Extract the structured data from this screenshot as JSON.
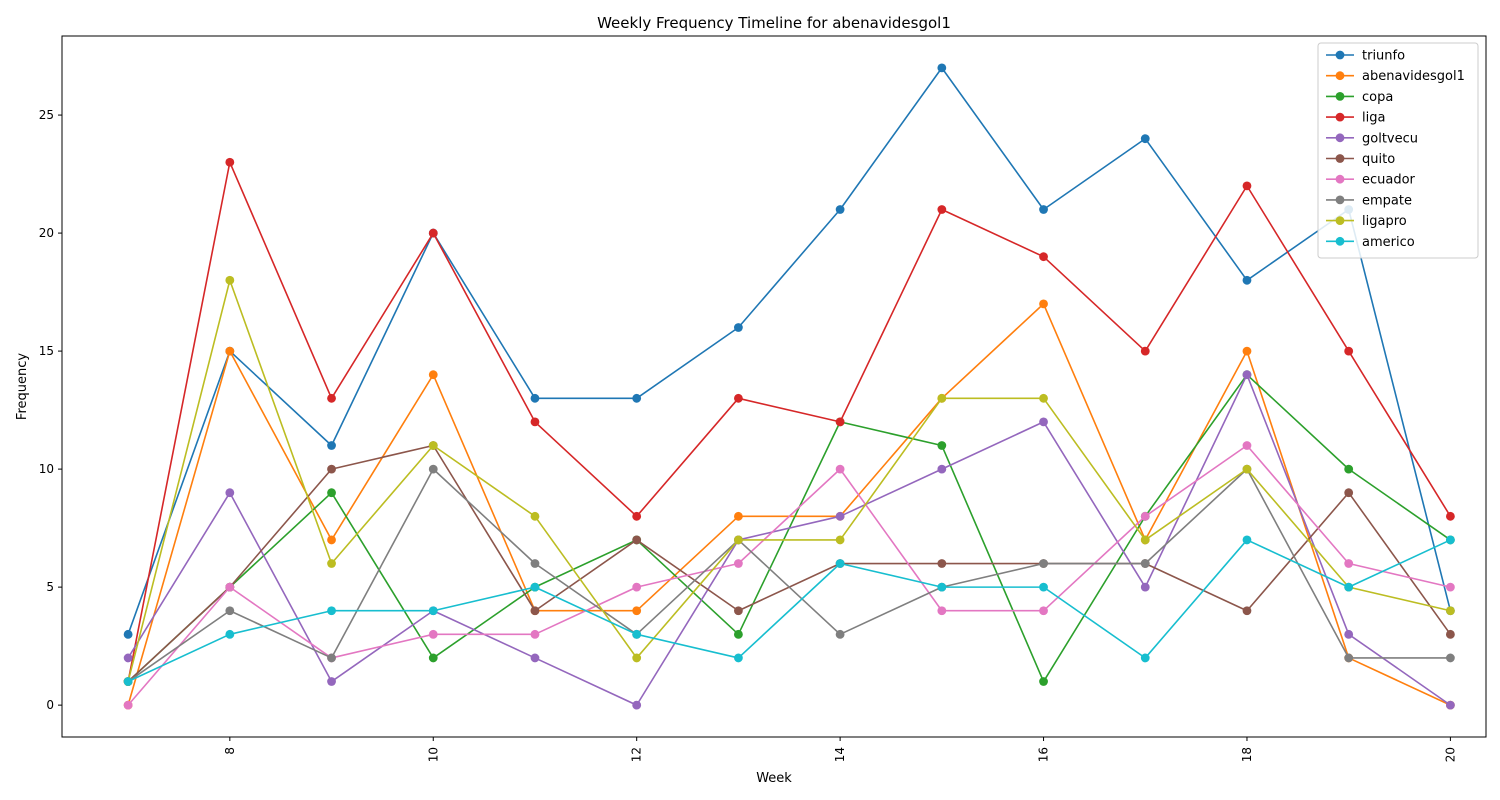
{
  "chart_data": {
    "type": "line",
    "title": "Weekly Frequency Timeline for abenavidesgol1",
    "xlabel": "Week",
    "ylabel": "Frequency",
    "x": [
      7,
      8,
      9,
      10,
      11,
      12,
      13,
      14,
      15,
      16,
      17,
      18,
      19,
      20
    ],
    "xticks": [
      8,
      10,
      12,
      14,
      16,
      18,
      20
    ],
    "xtick_rotation": 90,
    "xlim": [
      6.35,
      20.35
    ],
    "yticks": [
      0,
      5,
      10,
      15,
      20,
      25
    ],
    "ylim": [
      -1.35,
      28.35
    ],
    "grid": false,
    "legend_position": "top-right",
    "series": [
      {
        "name": "triunfo",
        "color": "#1f77b4",
        "values": [
          3,
          15,
          11,
          20,
          13,
          13,
          16,
          21,
          27,
          21,
          24,
          18,
          21,
          4
        ]
      },
      {
        "name": "abenavidesgol1",
        "color": "#ff7f0e",
        "values": [
          0,
          15,
          7,
          14,
          4,
          4,
          8,
          8,
          13,
          17,
          7,
          15,
          2,
          0
        ]
      },
      {
        "name": "copa",
        "color": "#2ca02c",
        "values": [
          1,
          5,
          9,
          2,
          5,
          7,
          3,
          12,
          11,
          1,
          8,
          14,
          10,
          7
        ]
      },
      {
        "name": "liga",
        "color": "#d62728",
        "values": [
          1,
          23,
          13,
          20,
          12,
          8,
          13,
          12,
          21,
          19,
          15,
          22,
          15,
          8
        ]
      },
      {
        "name": "goltvecu",
        "color": "#9467bd",
        "values": [
          2,
          9,
          1,
          4,
          2,
          0,
          7,
          8,
          10,
          12,
          5,
          14,
          3,
          0
        ]
      },
      {
        "name": "quito",
        "color": "#8c564b",
        "values": [
          1,
          5,
          10,
          11,
          4,
          7,
          4,
          6,
          6,
          6,
          6,
          4,
          9,
          3
        ]
      },
      {
        "name": "ecuador",
        "color": "#e377c2",
        "values": [
          0,
          5,
          2,
          3,
          3,
          5,
          6,
          10,
          4,
          4,
          8,
          11,
          6,
          5
        ]
      },
      {
        "name": "empate",
        "color": "#7f7f7f",
        "values": [
          1,
          4,
          2,
          10,
          6,
          3,
          7,
          3,
          5,
          6,
          6,
          10,
          2,
          2
        ]
      },
      {
        "name": "ligapro",
        "color": "#bcbd22",
        "values": [
          1,
          18,
          6,
          11,
          8,
          2,
          7,
          7,
          13,
          13,
          7,
          10,
          5,
          4
        ]
      },
      {
        "name": "americo",
        "color": "#17becf",
        "values": [
          1,
          3,
          4,
          4,
          5,
          3,
          2,
          6,
          5,
          5,
          2,
          7,
          5,
          7
        ]
      }
    ]
  }
}
